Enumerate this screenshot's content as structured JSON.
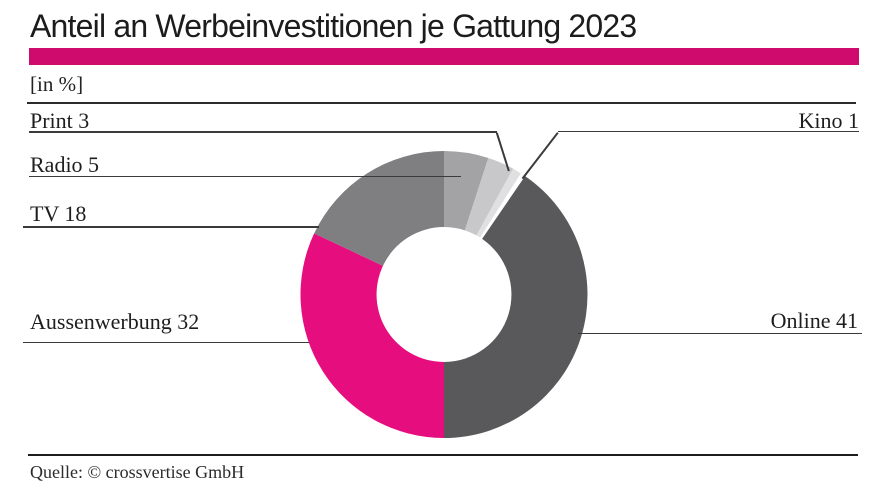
{
  "header": {
    "title": "Anteil an Werbeinvestitionen je Gattung 2023",
    "accent_bar_color": "#cf0c6e",
    "unit_label": "[in %]"
  },
  "chart_data": {
    "type": "pie",
    "subtype": "donut",
    "title": "Anteil an Werbeinvestitionen je Gattung 2023",
    "unit": "%",
    "segments": [
      {
        "label": "Radio",
        "value": 5,
        "color": "#a3a3a5"
      },
      {
        "label": "Print",
        "value": 3,
        "color": "#c8c8ca"
      },
      {
        "label": "Kino",
        "value": 1,
        "color": "#e0e0e2"
      },
      {
        "label": "Online",
        "value": 41,
        "color": "#59595b"
      },
      {
        "label": "Aussenwerbung",
        "value": 32,
        "color": "#e60d7e"
      },
      {
        "label": "TV",
        "value": 18,
        "color": "#7f7f82"
      }
    ],
    "layout": {
      "start_angle_deg": 0,
      "direction": "clockwise",
      "hole_ratio": 0.47,
      "white_gap_before_label": "Online",
      "white_gap_deg": 2,
      "label_style": "leader-lines",
      "label_sides": {
        "left": [
          "Print",
          "Radio",
          "TV",
          "Aussenwerbung"
        ],
        "right": [
          "Kino",
          "Online"
        ]
      }
    }
  },
  "footer": {
    "source": "Quelle: © crossvertise GmbH"
  }
}
